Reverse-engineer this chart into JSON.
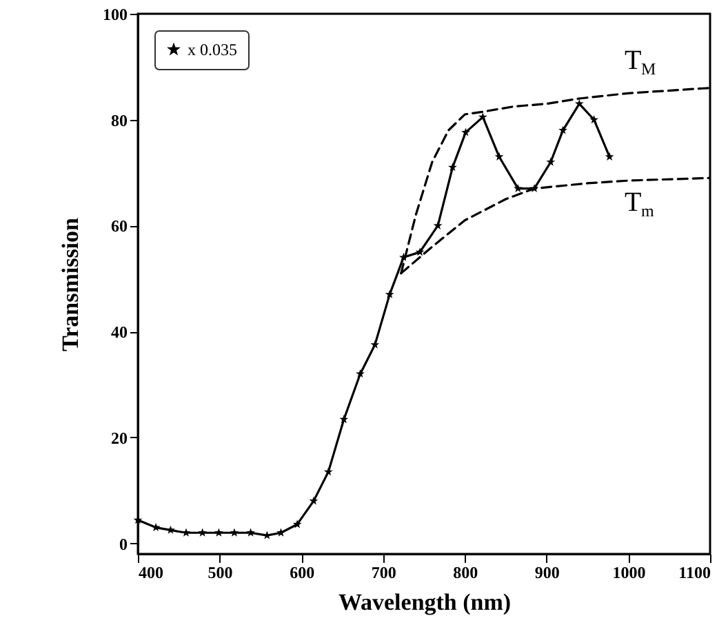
{
  "chart_data": {
    "type": "line",
    "xlabel": "Wavelength (nm)",
    "ylabel": "Transmission",
    "xlim": [
      400,
      1100
    ],
    "ylim": [
      -2,
      100
    ],
    "xticks": [
      400,
      500,
      600,
      700,
      800,
      900,
      1000,
      1100
    ],
    "yticks": [
      0,
      20,
      40,
      60,
      80,
      100
    ],
    "grid": false,
    "legend": "top left",
    "marker": "star",
    "line_style": "solid",
    "series": [
      {
        "name": "x 0.035",
        "color": "#000000",
        "x": [
          400,
          422,
          440,
          459,
          479,
          499,
          518,
          538,
          558,
          575,
          595,
          615,
          633,
          652,
          672,
          690,
          708,
          725,
          745,
          767,
          785,
          801,
          822,
          842,
          865,
          885,
          905,
          920,
          940,
          958,
          977
        ],
        "values": [
          4.4,
          3,
          2.5,
          2,
          2,
          2,
          2,
          2,
          1.5,
          2,
          3.6,
          8,
          13.5,
          23.4,
          32,
          37.5,
          47,
          54,
          55,
          60,
          71,
          77.6,
          80.5,
          73,
          67,
          67,
          72,
          78,
          83,
          80,
          73
        ]
      },
      {
        "name": "T$_{M}$",
        "color": "#000000",
        "marker": "none",
        "line_style": "dashed",
        "x": [
          722,
          740,
          760,
          780,
          800,
          822,
          860,
          900,
          940,
          1000,
          1100
        ],
        "values": [
          51,
          62,
          72,
          78,
          81,
          81.5,
          82.5,
          83,
          84,
          85,
          86
        ]
      },
      {
        "name": "T$_{m}$",
        "color": "#000000",
        "marker": "none",
        "line_style": "dashed",
        "x": [
          722,
          760,
          800,
          850,
          885,
          950,
          1000,
          1100
        ],
        "values": [
          51,
          56,
          61,
          65,
          67,
          68,
          68.5,
          69
        ]
      }
    ]
  }
}
